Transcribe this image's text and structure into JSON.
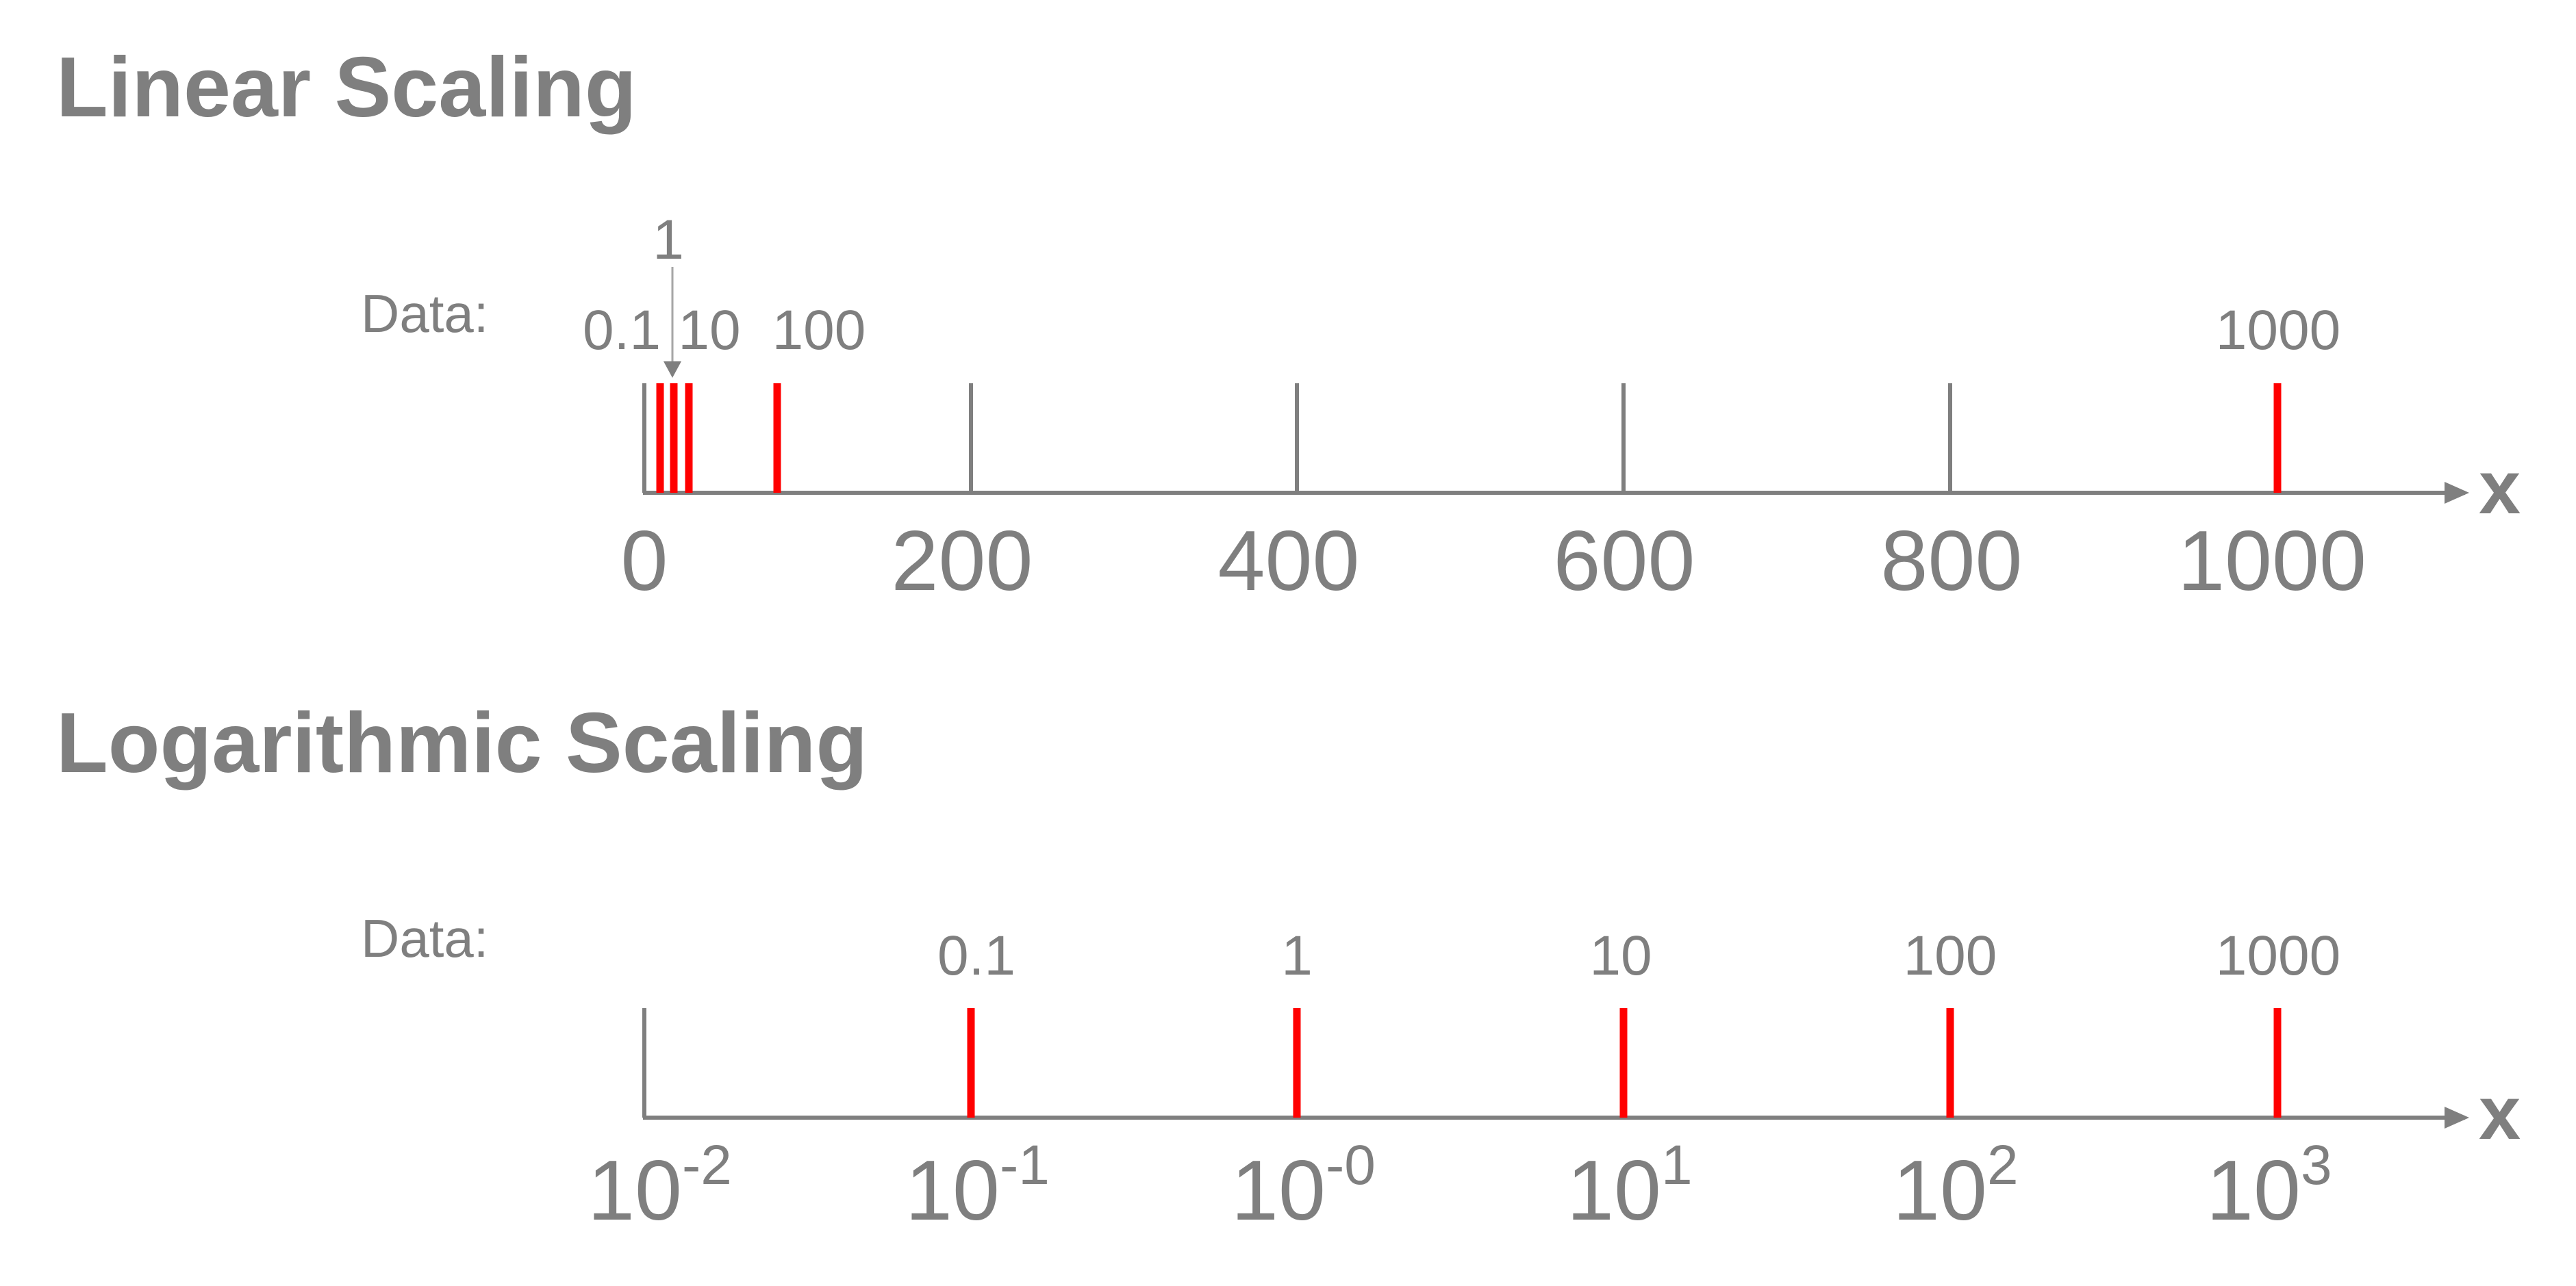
{
  "colors": {
    "text": "#7f7f7f",
    "axis": "#7f7f7f",
    "data_mark": "#ff0000",
    "background": "#ffffff"
  },
  "linear": {
    "heading": "Linear Scaling",
    "data_label": "Data:",
    "axis_symbol": "x",
    "scale": "linear",
    "axis_range": [
      0,
      1000
    ],
    "ticks": [
      {
        "value": 0,
        "label": "0"
      },
      {
        "value": 200,
        "label": "200"
      },
      {
        "value": 400,
        "label": "400"
      },
      {
        "value": 600,
        "label": "600"
      },
      {
        "value": 800,
        "label": "800"
      },
      {
        "value": 1000,
        "label": "1000"
      }
    ],
    "data_points": [
      {
        "label": "0.1"
      },
      {
        "label": "1",
        "arrow": true
      },
      {
        "label": "10"
      },
      {
        "label": "100"
      },
      {
        "label": "1000"
      }
    ]
  },
  "logarithmic": {
    "heading": "Logarithmic Scaling",
    "data_label": "Data:",
    "axis_symbol": "x",
    "scale": "log",
    "axis_range": [
      0.01,
      1000
    ],
    "ticks": [
      {
        "value": 0.01,
        "base": "10",
        "exponent": "-2"
      },
      {
        "value": 0.1,
        "base": "10",
        "exponent": "-1"
      },
      {
        "value": 1,
        "base": "10",
        "exponent": "-0"
      },
      {
        "value": 10,
        "base": "10",
        "exponent": "1"
      },
      {
        "value": 100,
        "base": "10",
        "exponent": "2"
      },
      {
        "value": 1000,
        "base": "10",
        "exponent": "3"
      }
    ],
    "data_points": [
      {
        "value": 0.1,
        "label": "0.1"
      },
      {
        "value": 1,
        "label": "1"
      },
      {
        "value": 10,
        "label": "10"
      },
      {
        "value": 100,
        "label": "100"
      },
      {
        "value": 1000,
        "label": "1000"
      }
    ]
  }
}
